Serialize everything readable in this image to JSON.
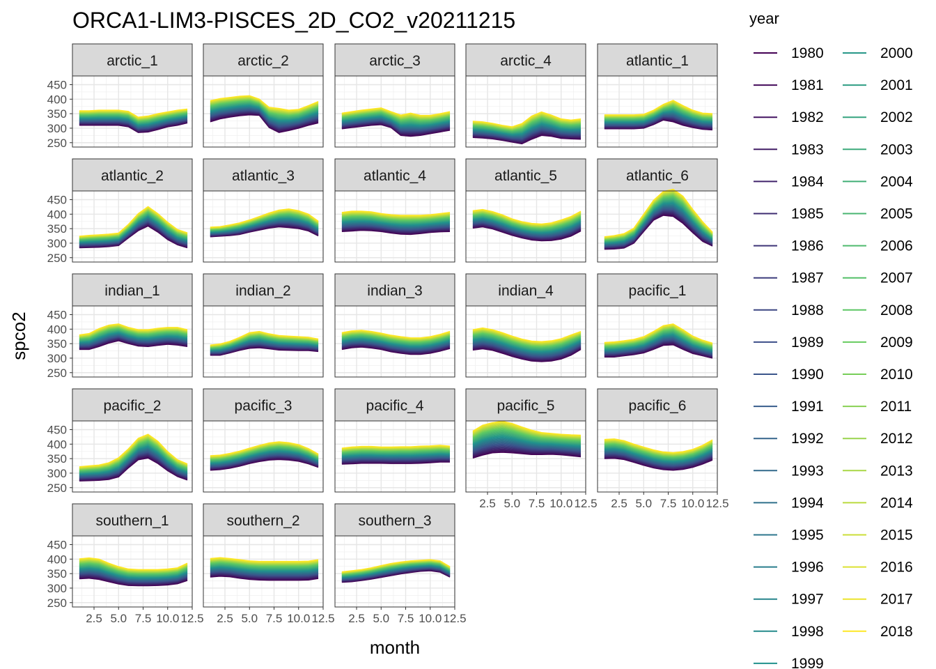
{
  "chart_data": {
    "type": "line",
    "title": "ORCA1-LIM3-PISCES_2D_CO2_v20211215",
    "xlabel": "month",
    "ylabel": "spco2",
    "xlim": [
      0.3,
      12.5
    ],
    "ylim": [
      235,
      480
    ],
    "x_ticks": [
      2.5,
      5.0,
      7.5,
      10.0,
      12.5
    ],
    "x_tick_labels": [
      "2.5",
      "5.0",
      "7.5",
      "10.0",
      "12.5"
    ],
    "y_ticks": [
      250,
      300,
      350,
      400,
      450
    ],
    "y_tick_labels": [
      "250",
      "300",
      "350",
      "400",
      "450"
    ],
    "grid": true,
    "legend": {
      "title": "year",
      "placement": "right",
      "entries": [
        "1980",
        "1981",
        "1982",
        "1983",
        "1984",
        "1985",
        "1986",
        "1987",
        "1988",
        "1989",
        "1990",
        "1991",
        "1992",
        "1993",
        "1994",
        "1995",
        "1996",
        "1997",
        "1998",
        "1999",
        "2000",
        "2001",
        "2002",
        "2003",
        "2004",
        "2005",
        "2006",
        "2007",
        "2008",
        "2009",
        "2010",
        "2011",
        "2012",
        "2013",
        "2014",
        "2015",
        "2016",
        "2017",
        "2018"
      ],
      "palette": "viridis",
      "color_start": "#440154",
      "color_end": "#FDE725"
    },
    "x": [
      1,
      2,
      3,
      4,
      5,
      6,
      7,
      8,
      9,
      10,
      11,
      12
    ],
    "facets": [
      {
        "name": "arctic_1",
        "low": [
          310,
          310,
          310,
          310,
          310,
          305,
          285,
          287,
          295,
          305,
          310,
          318
        ],
        "high": [
          360,
          360,
          362,
          362,
          362,
          358,
          338,
          342,
          350,
          356,
          362,
          366
        ]
      },
      {
        "name": "arctic_2",
        "low": [
          322,
          332,
          338,
          343,
          346,
          344,
          302,
          285,
          292,
          300,
          310,
          318
        ],
        "high": [
          395,
          402,
          406,
          410,
          412,
          400,
          372,
          368,
          362,
          365,
          378,
          392
        ]
      },
      {
        "name": "arctic_3",
        "low": [
          298,
          302,
          306,
          310,
          312,
          302,
          275,
          272,
          275,
          281,
          287,
          293
        ],
        "high": [
          352,
          357,
          362,
          366,
          370,
          357,
          345,
          352,
          344,
          344,
          350,
          357
        ]
      },
      {
        "name": "arctic_4",
        "low": [
          268,
          266,
          263,
          258,
          252,
          246,
          262,
          275,
          272,
          265,
          263,
          262
        ],
        "high": [
          324,
          322,
          317,
          310,
          305,
          316,
          342,
          356,
          345,
          332,
          328,
          332
        ]
      },
      {
        "name": "atlantic_1",
        "low": [
          298,
          298,
          298,
          298,
          300,
          312,
          328,
          322,
          310,
          302,
          296,
          294
        ],
        "high": [
          346,
          346,
          346,
          346,
          348,
          362,
          382,
          396,
          378,
          362,
          352,
          350
        ]
      },
      {
        "name": "atlantic_2",
        "low": [
          284,
          285,
          286,
          288,
          292,
          318,
          343,
          359,
          338,
          312,
          294,
          284
        ],
        "high": [
          324,
          327,
          329,
          331,
          335,
          365,
          402,
          426,
          402,
          372,
          347,
          336
        ]
      },
      {
        "name": "atlantic_3",
        "low": [
          322,
          324,
          326,
          330,
          338,
          345,
          352,
          356,
          354,
          350,
          342,
          325
        ],
        "high": [
          355,
          357,
          363,
          370,
          380,
          392,
          404,
          414,
          418,
          412,
          400,
          376
        ]
      },
      {
        "name": "atlantic_4",
        "low": [
          340,
          342,
          344,
          343,
          340,
          335,
          331,
          330,
          333,
          337,
          339,
          340
        ],
        "high": [
          406,
          410,
          410,
          408,
          402,
          398,
          396,
          396,
          396,
          398,
          402,
          406
        ]
      },
      {
        "name": "atlantic_5",
        "low": [
          352,
          356,
          349,
          338,
          327,
          318,
          311,
          308,
          309,
          314,
          324,
          342
        ],
        "high": [
          412,
          416,
          409,
          398,
          384,
          374,
          368,
          366,
          370,
          380,
          392,
          410
        ]
      },
      {
        "name": "atlantic_6",
        "low": [
          279,
          280,
          283,
          300,
          340,
          379,
          396,
          392,
          368,
          336,
          306,
          290
        ],
        "high": [
          322,
          326,
          333,
          352,
          400,
          448,
          478,
          486,
          462,
          416,
          374,
          338
        ]
      },
      {
        "name": "indian_1",
        "low": [
          330,
          330,
          340,
          352,
          360,
          350,
          342,
          340,
          344,
          348,
          345,
          340
        ],
        "high": [
          380,
          385,
          402,
          414,
          418,
          406,
          398,
          398,
          403,
          406,
          406,
          398
        ]
      },
      {
        "name": "indian_2",
        "low": [
          310,
          310,
          318,
          327,
          334,
          336,
          332,
          328,
          327,
          326,
          326,
          323
        ],
        "high": [
          345,
          349,
          358,
          372,
          388,
          392,
          384,
          378,
          376,
          374,
          372,
          366
        ]
      },
      {
        "name": "indian_3",
        "low": [
          330,
          336,
          338,
          335,
          330,
          322,
          317,
          313,
          313,
          317,
          324,
          333
        ],
        "high": [
          388,
          394,
          396,
          392,
          386,
          379,
          374,
          370,
          370,
          374,
          382,
          392
        ]
      },
      {
        "name": "indian_4",
        "low": [
          328,
          332,
          327,
          317,
          306,
          297,
          290,
          288,
          290,
          297,
          310,
          330
        ],
        "high": [
          398,
          404,
          398,
          388,
          376,
          366,
          359,
          357,
          360,
          367,
          380,
          392
        ]
      },
      {
        "name": "pacific_1",
        "low": [
          304,
          304,
          308,
          312,
          318,
          330,
          344,
          346,
          330,
          316,
          308,
          300
        ],
        "high": [
          354,
          356,
          360,
          365,
          374,
          392,
          412,
          418,
          398,
          376,
          362,
          352
        ]
      },
      {
        "name": "pacific_2",
        "low": [
          273,
          274,
          275,
          278,
          287,
          318,
          346,
          352,
          333,
          308,
          288,
          276
        ],
        "high": [
          322,
          325,
          328,
          336,
          353,
          384,
          420,
          434,
          410,
          374,
          346,
          332
        ]
      },
      {
        "name": "pacific_3",
        "low": [
          310,
          312,
          317,
          324,
          333,
          340,
          345,
          347,
          345,
          341,
          332,
          320
        ],
        "high": [
          360,
          362,
          368,
          376,
          386,
          396,
          404,
          408,
          405,
          398,
          385,
          366
        ]
      },
      {
        "name": "pacific_4",
        "low": [
          331,
          332,
          334,
          334,
          334,
          333,
          333,
          333,
          334,
          336,
          338,
          338
        ],
        "high": [
          386,
          390,
          392,
          392,
          390,
          390,
          391,
          391,
          393,
          394,
          396,
          393
        ]
      },
      {
        "name": "pacific_5",
        "low": [
          352,
          362,
          370,
          372,
          370,
          367,
          364,
          364,
          365,
          363,
          360,
          356
        ],
        "high": [
          445,
          465,
          474,
          479,
          471,
          459,
          448,
          440,
          437,
          434,
          432,
          431
        ]
      },
      {
        "name": "pacific_6",
        "low": [
          350,
          351,
          347,
          337,
          327,
          318,
          312,
          310,
          313,
          320,
          331,
          345
        ],
        "high": [
          416,
          418,
          412,
          400,
          390,
          380,
          373,
          371,
          374,
          382,
          396,
          415
        ]
      },
      {
        "name": "southern_1",
        "low": [
          332,
          334,
          330,
          322,
          314,
          309,
          308,
          308,
          309,
          311,
          315,
          326
        ],
        "high": [
          401,
          404,
          400,
          386,
          374,
          366,
          364,
          364,
          364,
          366,
          370,
          386
        ]
      },
      {
        "name": "southern_2",
        "low": [
          338,
          341,
          339,
          334,
          330,
          328,
          327,
          327,
          327,
          327,
          328,
          333
        ],
        "high": [
          402,
          405,
          402,
          398,
          394,
          392,
          392,
          392,
          392,
          392,
          393,
          398
        ]
      },
      {
        "name": "southern_3",
        "low": [
          320,
          322,
          326,
          331,
          337,
          343,
          349,
          354,
          358,
          360,
          355,
          338
        ],
        "high": [
          356,
          360,
          364,
          370,
          378,
          385,
          390,
          394,
          396,
          398,
          394,
          374
        ]
      }
    ]
  }
}
